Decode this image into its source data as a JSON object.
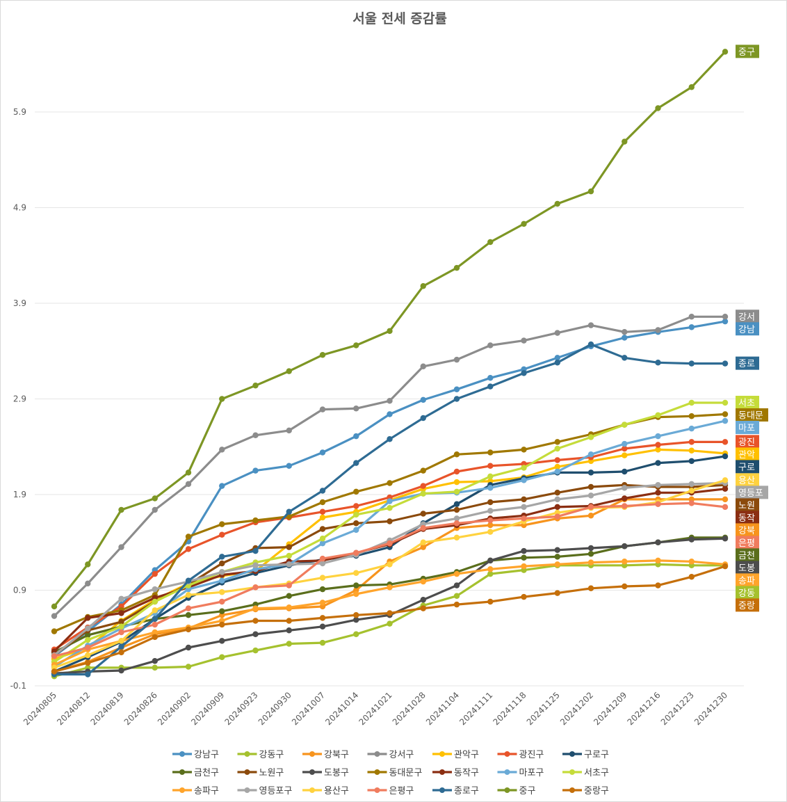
{
  "chart_data": {
    "type": "line",
    "title": "서울 전세 증감률",
    "xlabel": "",
    "ylabel": "",
    "ylim": [
      -0.1,
      6.6
    ],
    "yticks": [
      -0.1,
      0.9,
      1.9,
      2.9,
      3.9,
      4.9,
      5.9
    ],
    "ytick_labels": [
      "-0.1",
      "0.9",
      "1.9",
      "2.9",
      "3.9",
      "4.9",
      "5.9"
    ],
    "grid": true,
    "legend_position": "bottom",
    "x": [
      "20240805",
      "20240812",
      "20240819",
      "20240826",
      "20240902",
      "20240909",
      "20240923",
      "20240930",
      "20241007",
      "20241014",
      "20241021",
      "20241028",
      "20241104",
      "20241111",
      "20241118",
      "20241125",
      "20241202",
      "20241209",
      "20241216",
      "20241223",
      "20241230"
    ],
    "series": [
      {
        "name": "강남구",
        "end_label": "강남",
        "color": "#4a90c2",
        "values": [
          0.21,
          0.47,
          0.75,
          1.11,
          1.41,
          1.99,
          2.15,
          2.2,
          2.34,
          2.51,
          2.74,
          2.89,
          3.0,
          3.12,
          3.21,
          3.33,
          3.45,
          3.54,
          3.6,
          3.65,
          3.71
        ]
      },
      {
        "name": "강동구",
        "end_label": "강동",
        "color": "#a5c12e",
        "values": [
          0.0,
          0.09,
          0.09,
          0.09,
          0.1,
          0.2,
          0.27,
          0.34,
          0.35,
          0.44,
          0.55,
          0.74,
          0.84,
          1.07,
          1.11,
          1.16,
          1.16,
          1.16,
          1.17,
          1.16,
          1.16
        ]
      },
      {
        "name": "강북구",
        "end_label": "강북",
        "color": "#f7941d",
        "values": [
          0.05,
          0.15,
          0.3,
          0.44,
          0.5,
          0.64,
          0.7,
          0.71,
          0.73,
          0.9,
          1.2,
          1.35,
          1.55,
          1.58,
          1.58,
          1.65,
          1.68,
          1.85,
          1.85,
          1.85,
          1.85
        ]
      },
      {
        "name": "강서구",
        "end_label": "강서",
        "color": "#8c8c8c",
        "values": [
          0.63,
          0.97,
          1.35,
          1.74,
          2.01,
          2.37,
          2.52,
          2.57,
          2.79,
          2.8,
          2.88,
          3.24,
          3.31,
          3.46,
          3.51,
          3.59,
          3.67,
          3.6,
          3.62,
          3.76,
          3.76
        ]
      },
      {
        "name": "관악구",
        "end_label": "관악",
        "color": "#ffc000",
        "values": [
          0.18,
          0.3,
          0.58,
          0.8,
          0.97,
          1.05,
          1.1,
          1.38,
          1.66,
          1.72,
          1.84,
          1.96,
          2.03,
          2.04,
          2.08,
          2.19,
          2.25,
          2.31,
          2.37,
          2.36,
          2.33
        ]
      },
      {
        "name": "광진구",
        "end_label": "광진",
        "color": "#e8542a",
        "values": [
          0.28,
          0.51,
          0.73,
          1.07,
          1.33,
          1.48,
          1.61,
          1.66,
          1.72,
          1.78,
          1.87,
          1.99,
          2.14,
          2.2,
          2.22,
          2.26,
          2.29,
          2.38,
          2.42,
          2.45,
          2.45
        ]
      },
      {
        "name": "구로구",
        "end_label": "구로",
        "color": "#1f4e6e",
        "values": [
          0.05,
          0.2,
          0.36,
          0.6,
          0.82,
          0.98,
          1.08,
          1.16,
          1.22,
          1.26,
          1.35,
          1.6,
          1.8,
          2.0,
          2.07,
          2.13,
          2.13,
          2.14,
          2.23,
          2.25,
          2.3
        ]
      },
      {
        "name": "금천구",
        "end_label": "금천",
        "color": "#5a6e1c",
        "values": [
          0.25,
          0.43,
          0.52,
          0.6,
          0.64,
          0.68,
          0.75,
          0.84,
          0.91,
          0.95,
          0.96,
          1.02,
          1.09,
          1.21,
          1.24,
          1.25,
          1.28,
          1.36,
          1.4,
          1.45,
          1.45
        ]
      },
      {
        "name": "노원구",
        "end_label": "노원",
        "color": "#8b4a0c",
        "values": [
          0.22,
          0.48,
          0.57,
          0.78,
          0.96,
          1.18,
          1.34,
          1.35,
          1.54,
          1.6,
          1.62,
          1.7,
          1.74,
          1.82,
          1.85,
          1.92,
          1.98,
          2.0,
          1.98,
          1.98,
          2.0
        ]
      },
      {
        "name": "도봉구",
        "end_label": "도봉",
        "color": "#4d4d4d",
        "values": [
          0.03,
          0.05,
          0.06,
          0.16,
          0.3,
          0.37,
          0.44,
          0.48,
          0.52,
          0.59,
          0.64,
          0.8,
          0.95,
          1.21,
          1.31,
          1.32,
          1.34,
          1.36,
          1.4,
          1.43,
          1.44
        ]
      },
      {
        "name": "동대문구",
        "end_label": "동대문",
        "color": "#a07800",
        "values": [
          0.47,
          0.62,
          0.69,
          0.85,
          1.46,
          1.59,
          1.63,
          1.67,
          1.82,
          1.93,
          2.02,
          2.15,
          2.32,
          2.34,
          2.37,
          2.45,
          2.53,
          2.63,
          2.71,
          2.72,
          2.74
        ]
      },
      {
        "name": "동작구",
        "end_label": "동작",
        "color": "#8b2e12",
        "values": [
          0.26,
          0.61,
          0.66,
          0.82,
          0.93,
          1.06,
          1.1,
          1.2,
          1.21,
          1.29,
          1.38,
          1.54,
          1.58,
          1.65,
          1.68,
          1.77,
          1.78,
          1.86,
          1.92,
          1.92,
          1.96
        ]
      },
      {
        "name": "마포구",
        "end_label": "마포",
        "color": "#6aaad6",
        "values": [
          0.1,
          0.32,
          0.5,
          0.66,
          0.91,
          1.0,
          1.12,
          1.17,
          1.39,
          1.53,
          1.83,
          1.91,
          1.92,
          1.97,
          2.05,
          2.14,
          2.32,
          2.43,
          2.51,
          2.59,
          2.67
        ]
      },
      {
        "name": "서초구",
        "end_label": "서초",
        "color": "#c5dc3a",
        "values": [
          0.15,
          0.38,
          0.52,
          0.78,
          0.95,
          1.09,
          1.19,
          1.26,
          1.44,
          1.69,
          1.76,
          1.91,
          1.93,
          2.09,
          2.18,
          2.38,
          2.5,
          2.63,
          2.73,
          2.86,
          2.86
        ]
      },
      {
        "name": "송파구",
        "end_label": "송파",
        "color": "#ffa42b",
        "values": [
          0.12,
          0.28,
          0.37,
          0.46,
          0.51,
          0.58,
          0.71,
          0.72,
          0.77,
          0.86,
          0.93,
          0.99,
          1.07,
          1.12,
          1.15,
          1.17,
          1.19,
          1.2,
          1.21,
          1.2,
          1.17
        ]
      },
      {
        "name": "영등포구",
        "end_label": "영등포",
        "color": "#a6a6a6",
        "values": [
          0.22,
          0.5,
          0.81,
          0.91,
          0.99,
          1.09,
          1.16,
          1.17,
          1.18,
          1.27,
          1.42,
          1.59,
          1.65,
          1.73,
          1.77,
          1.85,
          1.89,
          1.97,
          2.0,
          2.01,
          2.02
        ]
      },
      {
        "name": "용산구",
        "end_label": "용산",
        "color": "#ffd23f",
        "values": [
          0.09,
          0.22,
          0.37,
          0.69,
          0.85,
          0.88,
          0.93,
          0.97,
          1.03,
          1.08,
          1.17,
          1.4,
          1.45,
          1.51,
          1.62,
          1.71,
          1.76,
          1.77,
          1.82,
          1.94,
          2.05
        ]
      },
      {
        "name": "은평구",
        "end_label": "은평",
        "color": "#f07c5e",
        "values": [
          0.21,
          0.3,
          0.46,
          0.54,
          0.71,
          0.78,
          0.93,
          0.95,
          1.23,
          1.29,
          1.39,
          1.55,
          1.6,
          1.63,
          1.65,
          1.67,
          1.77,
          1.78,
          1.8,
          1.81,
          1.77
        ]
      },
      {
        "name": "종로구",
        "end_label": "종로",
        "color": "#2e6b93",
        "values": [
          0.02,
          0.02,
          0.31,
          0.6,
          1.0,
          1.25,
          1.31,
          1.72,
          1.94,
          2.23,
          2.48,
          2.7,
          2.9,
          3.03,
          3.17,
          3.28,
          3.47,
          3.33,
          3.28,
          3.27,
          3.27
        ]
      },
      {
        "name": "중구",
        "end_label": "중구",
        "color": "#7d9624",
        "values": [
          0.73,
          1.17,
          1.74,
          1.86,
          2.13,
          2.9,
          3.04,
          3.19,
          3.36,
          3.46,
          3.61,
          4.08,
          4.27,
          4.54,
          4.73,
          4.94,
          5.07,
          5.59,
          5.94,
          6.16,
          6.53
        ]
      },
      {
        "name": "중랑구",
        "end_label": "중랑",
        "color": "#c56f0a",
        "values": [
          0.05,
          0.14,
          0.25,
          0.41,
          0.49,
          0.54,
          0.58,
          0.58,
          0.61,
          0.64,
          0.66,
          0.71,
          0.75,
          0.78,
          0.83,
          0.87,
          0.92,
          0.94,
          0.95,
          1.04,
          1.15
        ]
      }
    ]
  }
}
